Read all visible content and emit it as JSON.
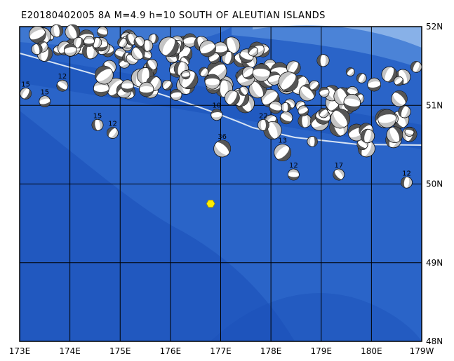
{
  "title": "E20180402005 8A M=4.9 h=10 SOUTH OF ALEUTIAN ISLANDS",
  "map": {
    "lon_labels": [
      "173E",
      "174E",
      "175E",
      "176E",
      "177E",
      "178E",
      "179E",
      "180E",
      "179W"
    ],
    "lat_labels": [
      "52N",
      "51N",
      "50N",
      "49N",
      "48N"
    ],
    "lon_range": [
      173,
      181
    ],
    "lat_range": [
      48,
      52
    ],
    "colors": {
      "ocean_deep": "#1a4fb8",
      "ocean_mid": "#2a64c8",
      "ocean_shallow": "#4f86d8",
      "shelf": "#8fb6ea",
      "trench_line": "#d8e4f4",
      "grid": "#000000",
      "epicenter": "#ffee00",
      "beachball_dark": "#555555",
      "beachball_light": "#ffffff"
    },
    "epicenter": {
      "lon": 176.8,
      "lat": 49.75
    },
    "labeled_events": [
      {
        "lon": 173.12,
        "lat": 51.15,
        "depth": "15"
      },
      {
        "lon": 173.5,
        "lat": 51.05,
        "depth": "15"
      },
      {
        "lon": 173.85,
        "lat": 51.25,
        "depth": "12"
      },
      {
        "lon": 174.55,
        "lat": 50.75,
        "depth": "15"
      },
      {
        "lon": 174.85,
        "lat": 50.65,
        "depth": "12"
      },
      {
        "lon": 176.92,
        "lat": 50.88,
        "depth": "10"
      },
      {
        "lon": 177.03,
        "lat": 50.45,
        "depth": "36"
      },
      {
        "lon": 177.85,
        "lat": 50.75,
        "depth": "22"
      },
      {
        "lon": 178.23,
        "lat": 50.4,
        "depth": "13"
      },
      {
        "lon": 178.45,
        "lat": 50.12,
        "depth": "12"
      },
      {
        "lon": 179.35,
        "lat": 50.12,
        "depth": "17"
      },
      {
        "lon": 180.7,
        "lat": 50.02,
        "depth": "12"
      }
    ]
  }
}
